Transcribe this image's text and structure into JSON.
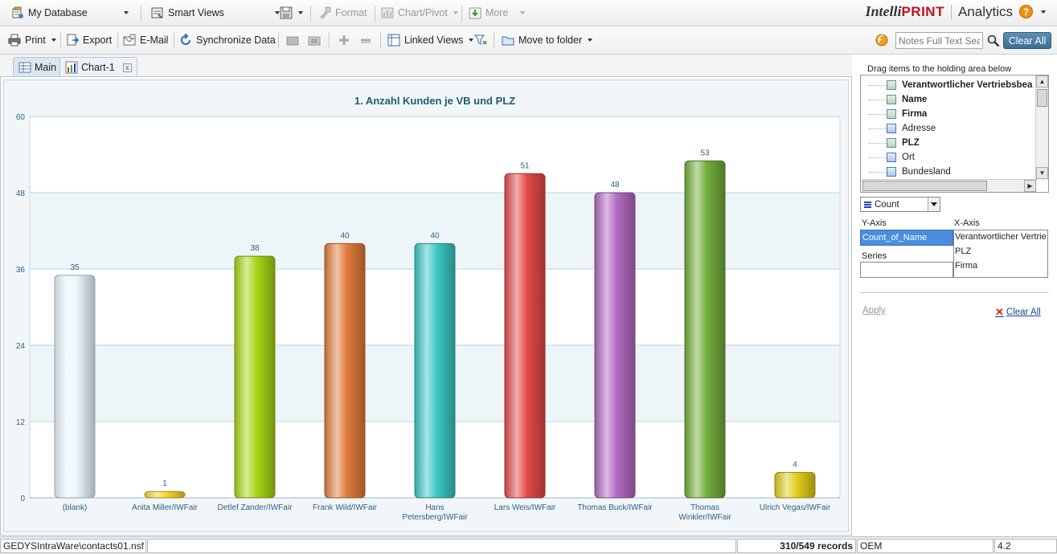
{
  "toolbar1": {
    "my_database": "My Database",
    "smart_views": "Smart Views",
    "format": "Format",
    "chart_pivot": "Chart/Pivot",
    "more": "More"
  },
  "brand": {
    "intelli": "Intelli",
    "print": "PRINT",
    "analytics": "Analytics",
    "help": "?"
  },
  "toolbar2": {
    "print": "Print",
    "export": "Export",
    "email": "E-Mail",
    "synchronize": "Synchronize Data",
    "linked_views": "Linked Views",
    "move_to_folder": "Move to folder"
  },
  "search": {
    "placeholder": "Notes Full Text Sea",
    "clear_all": "Clear All"
  },
  "tabs": [
    {
      "label": "Main"
    },
    {
      "label": "Chart-1"
    }
  ],
  "tab_close": "x",
  "chart_data": {
    "type": "bar",
    "title": "1. Anzahl Kunden je VB und PLZ",
    "categories": [
      "(blank)",
      "Anita Miller/IWFair",
      "Detlef Zander/IWFair",
      "Frank Wild/IWFair",
      "Hans Petersberg/IWFair",
      "Lars Weis/IWFair",
      "Thomas Buck/IWFair",
      "Thomas Winkler/IWFair",
      "Ulrich Vegas/IWFair"
    ],
    "category_lines": [
      [
        "(blank)"
      ],
      [
        "Anita Miller/IWFair"
      ],
      [
        "Detlef Zander/IWFair"
      ],
      [
        "Frank Wild/IWFair"
      ],
      [
        "Hans",
        "Petersberg/IWFair"
      ],
      [
        "Lars Weis/IWFair"
      ],
      [
        "Thomas Buck/IWFair"
      ],
      [
        "Thomas",
        "Winkler/IWFair"
      ],
      [
        "Ulrich Vegas/IWFair"
      ]
    ],
    "values": [
      35,
      1,
      38,
      40,
      40,
      51,
      48,
      53,
      4
    ],
    "colors": [
      "#e9f7fd",
      "#f6d42a",
      "#a6d414",
      "#e07c3c",
      "#3cc6c2",
      "#e24a4a",
      "#b26ac2",
      "#72ac3c",
      "#e0cc1c"
    ],
    "yticks": [
      "0",
      "12",
      "24",
      "36",
      "48",
      "60"
    ],
    "ylim": [
      0,
      60
    ],
    "grid": true,
    "label_color": "#2a5f8a"
  },
  "panel": {
    "drag_hint": "Drag items to the holding area below",
    "fields": [
      {
        "label": "Verantwortlicher Vertriebsbea",
        "bold": true,
        "type": "measure"
      },
      {
        "label": "Name",
        "bold": true,
        "type": "measure"
      },
      {
        "label": "Firma",
        "bold": true,
        "type": "measure"
      },
      {
        "label": "Adresse",
        "bold": false,
        "type": "dim"
      },
      {
        "label": "PLZ",
        "bold": true,
        "type": "measure"
      },
      {
        "label": "Ort",
        "bold": false,
        "type": "dim"
      },
      {
        "label": "Bundesland",
        "bold": false,
        "type": "dim"
      }
    ],
    "aggregate": "Count",
    "y_axis_label": "Y-Axis",
    "x_axis_label": "X-Axis",
    "series_label": "Series",
    "y_axis_value": "Count_of_Name",
    "x_axis_values": [
      "Verantwortlicher Vertrie",
      "PLZ",
      "Firma"
    ],
    "apply": "Apply",
    "clear_all": "Clear All"
  },
  "status": {
    "db": "GEDYSIntraWare\\contacts01.nsf",
    "records": "310/549 records",
    "oem": "OEM",
    "version": "4.2"
  }
}
